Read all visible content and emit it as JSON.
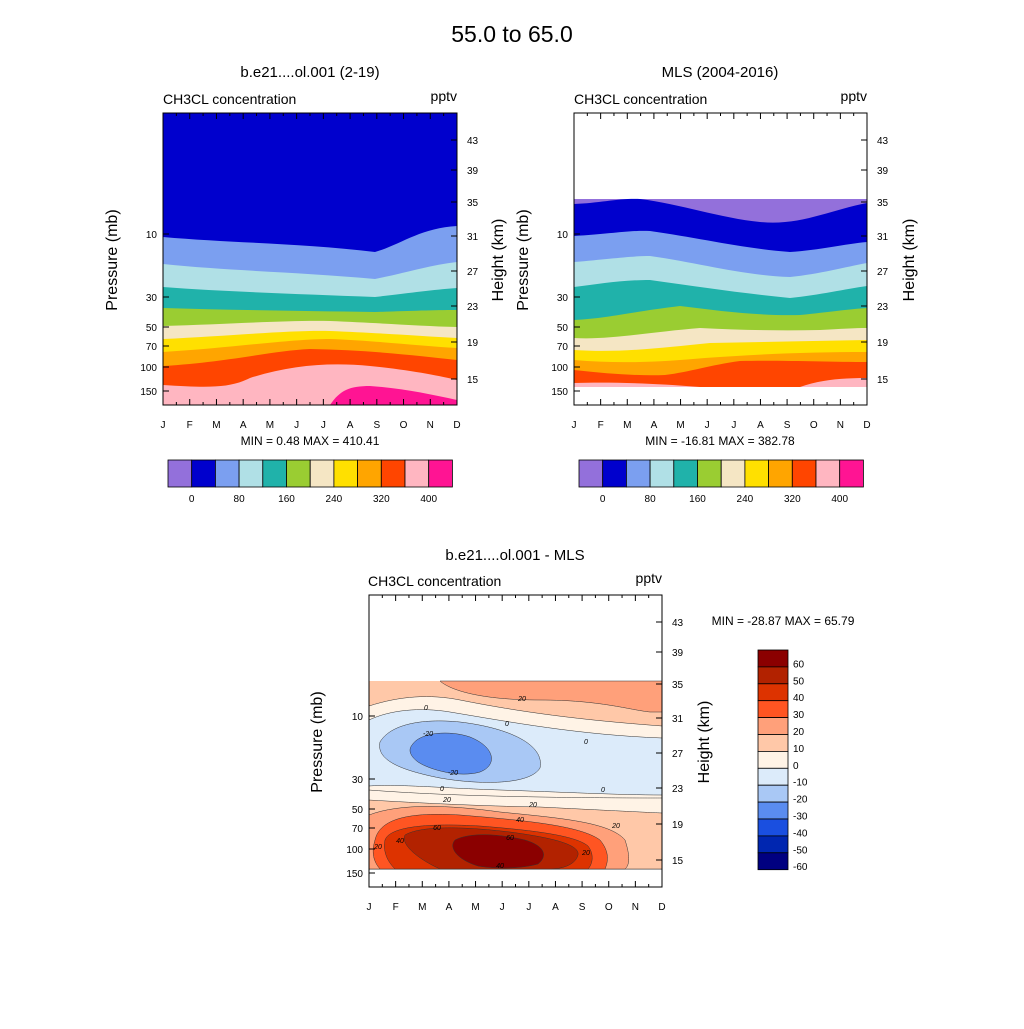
{
  "title": "55.0 to  65.0",
  "chart_data": [
    {
      "id": "model",
      "type": "heatmap",
      "title": "b.e21....ol.001 (2-19)",
      "left_label": "CH3CL concentration",
      "right_label": "pptv",
      "ylabel": "Pressure (mb)",
      "y2label": "Height (km)",
      "months": [
        "J",
        "F",
        "M",
        "A",
        "M",
        "J",
        "J",
        "A",
        "S",
        "O",
        "N",
        "D"
      ],
      "pressure_ticks": [
        "10",
        "30",
        "50",
        "70",
        "100",
        "150"
      ],
      "height_ticks": [
        "43",
        "39",
        "35",
        "31",
        "27",
        "23",
        "19",
        "15"
      ],
      "stats": "MIN =   0.48  MAX = 410.41",
      "colorbar_labels": [
        "0",
        "80",
        "160",
        "240",
        "320",
        "400"
      ],
      "colorbar_colors": [
        "#9370DB",
        "#0000CD",
        "#7B9FF0",
        "#B0E0E6",
        "#20B2AA",
        "#9ACD32",
        "#F5E6C4",
        "#FFE000",
        "#FFA500",
        "#FF4500",
        "#FFB6C1",
        "#FF1493"
      ],
      "level_boundaries_data": [
        400,
        360,
        320,
        280,
        240,
        200,
        160,
        120,
        80,
        40,
        0
      ]
    },
    {
      "id": "mls",
      "type": "heatmap",
      "title": "MLS (2004-2016)",
      "left_label": "CH3CL concentration",
      "right_label": "pptv",
      "ylabel": "Pressure (mb)",
      "y2label": "Height (km)",
      "months": [
        "J",
        "F",
        "M",
        "A",
        "M",
        "J",
        "J",
        "A",
        "S",
        "O",
        "N",
        "D"
      ],
      "pressure_ticks": [
        "10",
        "30",
        "50",
        "70",
        "100",
        "150"
      ],
      "height_ticks": [
        "43",
        "39",
        "35",
        "31",
        "27",
        "23",
        "19",
        "15"
      ],
      "stats": "MIN = -16.81  MAX = 382.78",
      "colorbar_labels": [
        "0",
        "80",
        "160",
        "240",
        "320",
        "400"
      ],
      "colorbar_colors": [
        "#9370DB",
        "#0000CD",
        "#7B9FF0",
        "#B0E0E6",
        "#20B2AA",
        "#9ACD32",
        "#F5E6C4",
        "#FFE000",
        "#FFA500",
        "#FF4500",
        "#FFB6C1",
        "#FF1493"
      ]
    },
    {
      "id": "diff",
      "type": "contour",
      "title": "b.e21....ol.001 - MLS",
      "left_label": "CH3CL concentration",
      "right_label": "pptv",
      "ylabel": "Pressure (mb)",
      "y2label": "Height (km)",
      "months": [
        "J",
        "F",
        "M",
        "A",
        "M",
        "J",
        "J",
        "A",
        "S",
        "O",
        "N",
        "D"
      ],
      "pressure_ticks": [
        "10",
        "30",
        "50",
        "70",
        "100",
        "150"
      ],
      "height_ticks": [
        "43",
        "39",
        "35",
        "31",
        "27",
        "23",
        "19",
        "15"
      ],
      "stats": "MIN = -28.87  MAX =  65.79",
      "colorbar_labels": [
        "60",
        "50",
        "40",
        "30",
        "20",
        "10",
        "0",
        "-10",
        "-20",
        "-30",
        "-40",
        "-50",
        "-60"
      ],
      "colorbar_colors": [
        "#8B0000",
        "#B22200",
        "#DD3300",
        "#FF5522",
        "#FFA07A",
        "#FFC8A8",
        "#FFF3E6",
        "#DCEBFA",
        "#A9C8F5",
        "#5A8CF0",
        "#1A4FE0",
        "#0026B0",
        "#000080"
      ],
      "contour_labels": [
        "20",
        "0",
        "-20",
        "0",
        "0",
        "-20",
        "0",
        "0",
        "20",
        "20",
        "40",
        "40",
        "20",
        "20",
        "20",
        "60",
        "60",
        "40"
      ]
    }
  ]
}
